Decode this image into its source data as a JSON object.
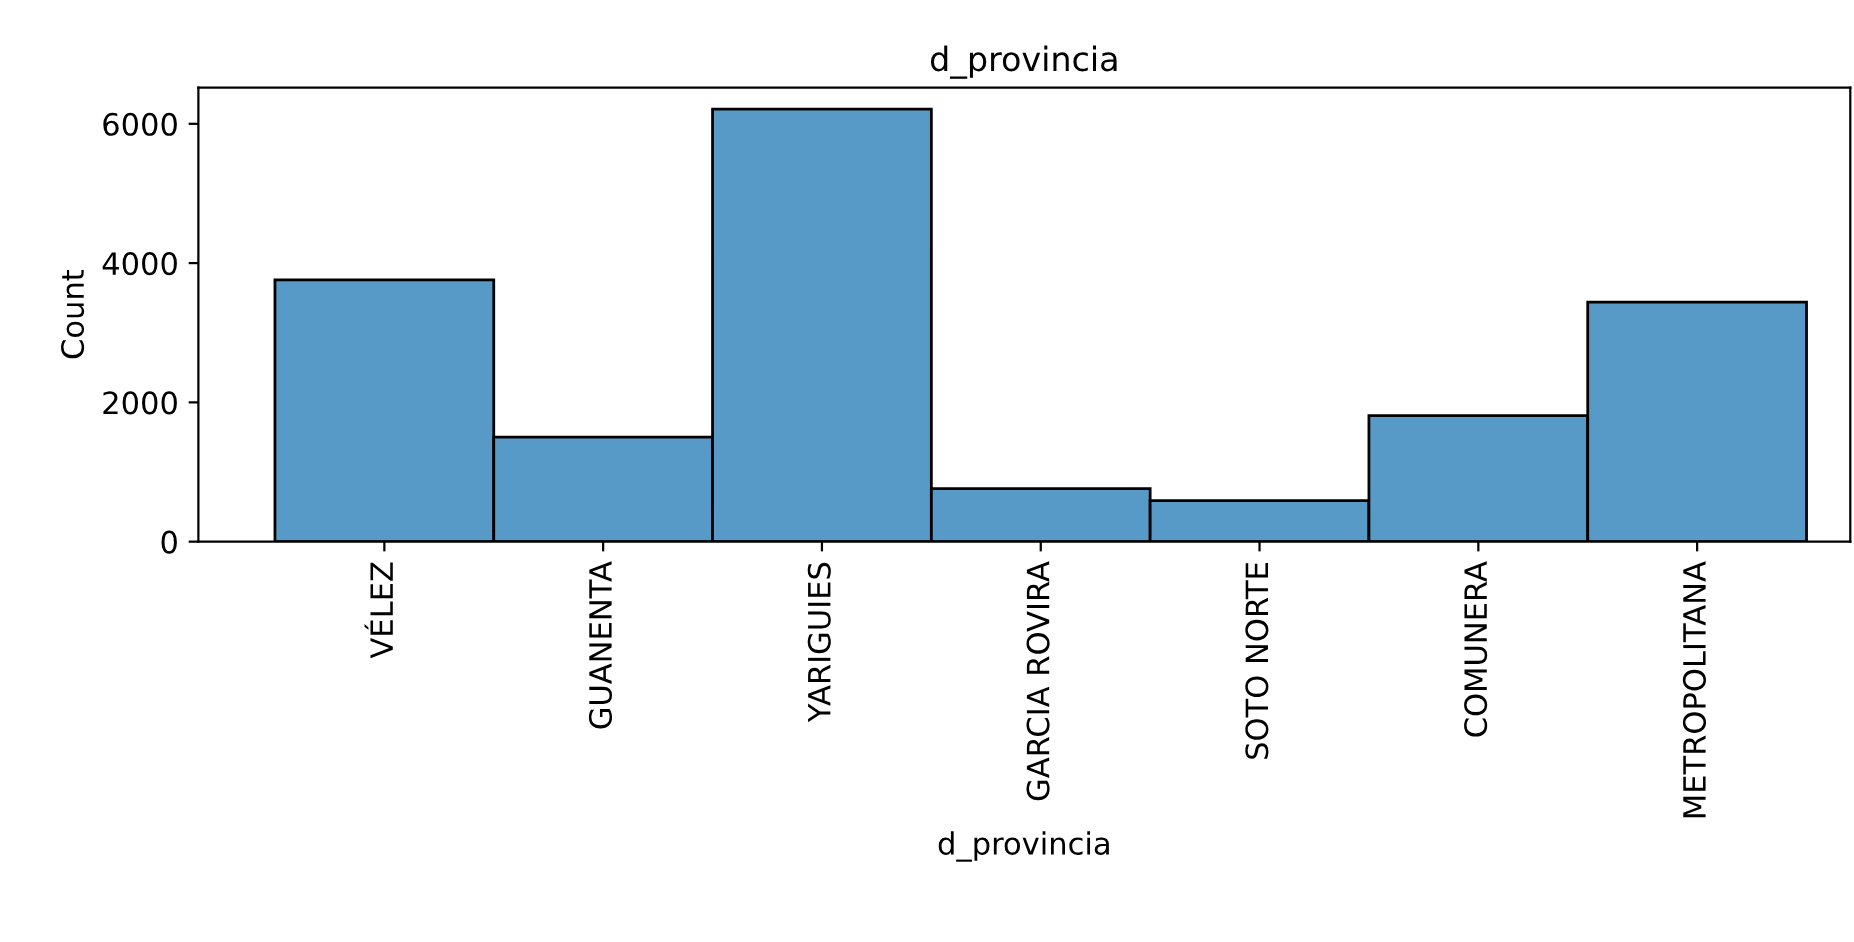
{
  "chart_data": {
    "type": "bar",
    "title": "d_provincia",
    "xlabel": "d_provincia",
    "ylabel": "Count",
    "categories": [
      "VÉLEZ",
      "GUANENTA",
      "YARIGUIES",
      "GARCIA ROVIRA",
      "SOTO NORTE",
      "COMUNERA",
      "METROPOLITANA"
    ],
    "values": [
      3760,
      1500,
      6210,
      760,
      590,
      1810,
      3440
    ],
    "color": "#5799c7",
    "ylim": [
      0,
      6520
    ],
    "yticks": [
      0,
      2000,
      4000,
      6000
    ],
    "grid": false
  }
}
